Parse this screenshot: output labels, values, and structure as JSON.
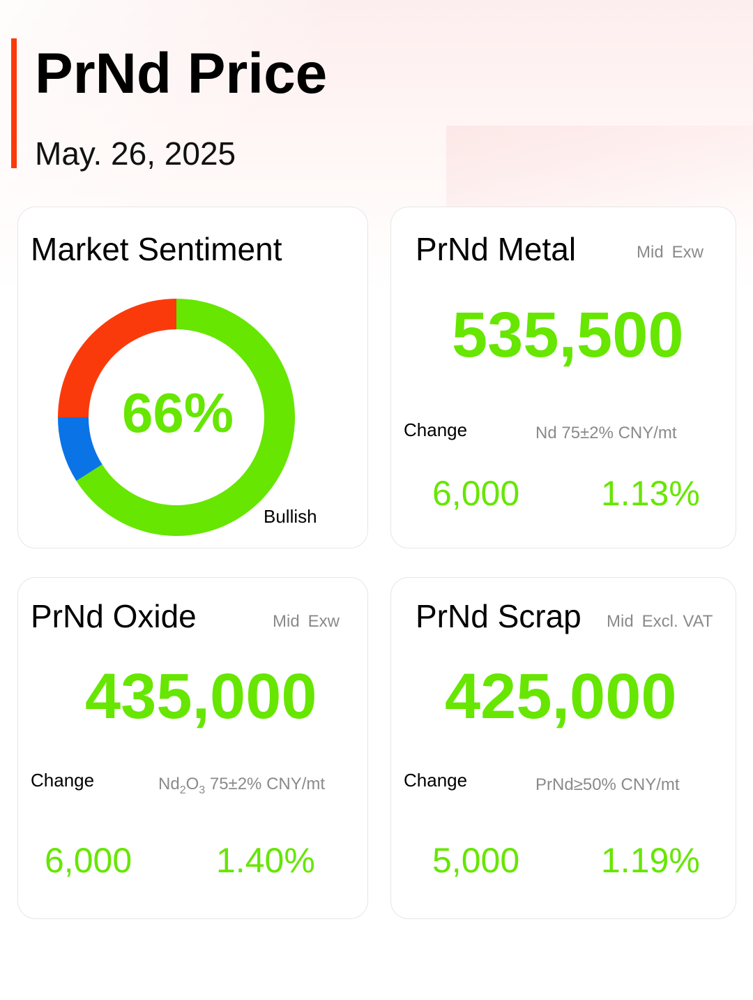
{
  "header": {
    "title": "PrNd Price",
    "date": "May. 26, 2025"
  },
  "colors": {
    "accent": "#fb3a0c",
    "bullish": "#66e600",
    "bearish": "#fb3a0c",
    "neutral": "#0a73e6"
  },
  "sentiment": {
    "title": "Market Sentiment",
    "percent_label": "66%",
    "label": "Bullish",
    "segments": [
      {
        "label": "Bullish",
        "share": 0.66,
        "color": "#66e600"
      },
      {
        "label": "neutral",
        "share": 0.09,
        "color": "#0a73e6"
      },
      {
        "label": "bearish",
        "share": 0.25,
        "color": "#fb3a0c"
      }
    ]
  },
  "metal": {
    "title": "PrNd Metal",
    "mid": "Mid",
    "basis": "Exw",
    "price": "535,500",
    "change_label": "Change",
    "unit": "Nd 75±2% CNY/mt",
    "change": "6,000",
    "change_pct": "1.13%"
  },
  "oxide": {
    "title": "PrNd Oxide",
    "mid": "Mid",
    "basis": "Exw",
    "price": "435,000",
    "change_label": "Change",
    "unit_prefix": "Nd",
    "unit_sub1": "2",
    "unit_mid": "O",
    "unit_sub2": "3",
    "unit_suffix": " 75±2% CNY/mt",
    "change": "6,000",
    "change_pct": "1.40%"
  },
  "scrap": {
    "title": "PrNd Scrap",
    "mid": "Mid",
    "basis": "Excl. VAT",
    "price": "425,000",
    "change_label": "Change",
    "unit": "PrNd≥50% CNY/mt",
    "change": "5,000",
    "change_pct": "1.19%"
  }
}
